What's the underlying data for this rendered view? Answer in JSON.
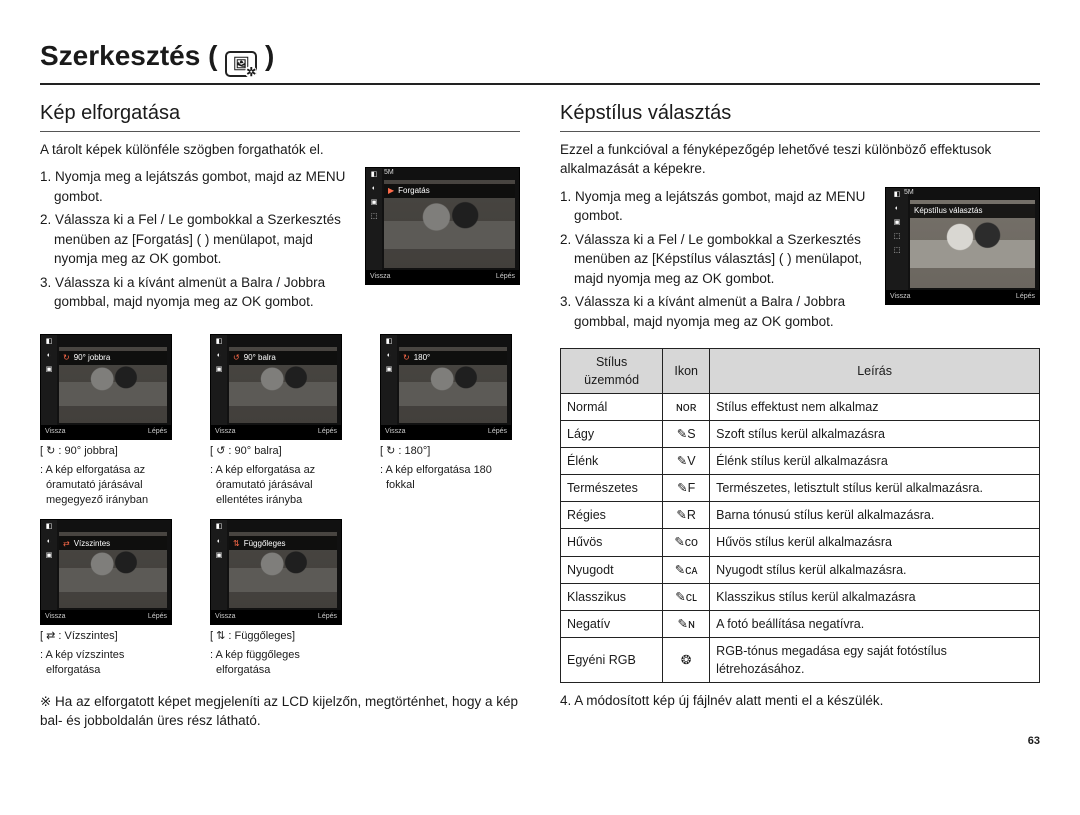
{
  "page_number": "63",
  "main_title": "Szerkesztés (",
  "main_title_close": ")",
  "left": {
    "section_title": "Kép elforgatása",
    "intro": "A tárolt képek különféle szögben forgathatók el.",
    "steps": [
      "1. Nyomja meg a lejátszás gombot, majd az MENU gombot.",
      "2. Válassza ki a Fel / Le gombokkal a Szerkesztés menüben az [Forgatás] (      ) menülapot, majd nyomja meg az OK gombot.",
      "3. Válassza ki a kívánt almenüt a Balra / Jobbra gombbal, majd nyomja meg az OK gombot."
    ],
    "big_preview": {
      "band_icon": "▶",
      "band_label": "Forgatás",
      "bottom_left": "Vissza",
      "bottom_right": "Lépés",
      "top_size": "5M"
    },
    "thumbs_row1": [
      {
        "band_icon": "↻",
        "band_label": "90° jobbra",
        "bottom_left": "Vissza",
        "bottom_right": "Lépés",
        "caption_head": "[ ↻ : 90° jobbra]",
        "caption_body": ": A kép elforgatása az óramutató járásával megegyező irányban"
      },
      {
        "band_icon": "↺",
        "band_label": "90° balra",
        "bottom_left": "Vissza",
        "bottom_right": "Lépés",
        "caption_head": "[ ↺ : 90° balra]",
        "caption_body": ": A kép elforgatása az óramutató járásával ellentétes irányba"
      },
      {
        "band_icon": "↻",
        "band_label": "180°",
        "bottom_left": "Vissza",
        "bottom_right": "Lépés",
        "caption_head": "[ ↻ : 180°]",
        "caption_body": ": A kép elforgatása 180 fokkal"
      }
    ],
    "thumbs_row2": [
      {
        "band_icon": "⇄",
        "band_label": "Vízszintes",
        "bottom_left": "Vissza",
        "bottom_right": "Lépés",
        "caption_head": "[ ⇄ : Vízszintes]",
        "caption_body": ": A kép vízszintes elforgatása"
      },
      {
        "band_icon": "⇅",
        "band_label": "Függőleges",
        "bottom_left": "Vissza",
        "bottom_right": "Lépés",
        "caption_head": "[ ⇅ : Függőleges]",
        "caption_body": ": A kép függőleges elforgatása"
      }
    ],
    "note": "※ Ha az elforgatott képet megjeleníti az LCD kijelzőn, megtörténhet, hogy a kép bal- és jobboldalán üres rész látható."
  },
  "right": {
    "section_title": "Képstílus választás",
    "intro": "Ezzel a funkcióval a fényképezőgép lehetővé teszi különböző effektusok alkalmazását a képekre.",
    "steps_before_preview": [
      "1. Nyomja meg a lejátszás gombot, majd az MENU gombot.",
      "2. Válassza ki a Fel / Le gombokkal a Szerkesztés menüben az [Képstílus választás] (        ) menülapot, majd nyomja meg az OK gombot.",
      "3. Válassza ki a kívánt almenüt a Balra / Jobbra gombbal, majd nyomja meg az OK gombot."
    ],
    "big_preview": {
      "band_label": "Képstílus választás",
      "bottom_left": "Vissza",
      "bottom_right": "Lépés",
      "top_size": "5M"
    },
    "table": {
      "headers": [
        "Stílus üzemmód",
        "Ikon",
        "Leírás"
      ],
      "rows": [
        {
          "mode": "Normál",
          "icon": "ɴᴏʀ",
          "desc": "Stílus effektust nem alkalmaz"
        },
        {
          "mode": "Lágy",
          "icon": "✎S",
          "desc": "Szoft stílus kerül alkalmazásra"
        },
        {
          "mode": "Élénk",
          "icon": "✎V",
          "desc": "Élénk stílus kerül alkalmazásra"
        },
        {
          "mode": "Természetes",
          "icon": "✎F",
          "desc": "Természetes, letisztult stílus kerül alkalmazásra."
        },
        {
          "mode": "Régies",
          "icon": "✎R",
          "desc": "Barna tónusú stílus kerül alkalmazásra."
        },
        {
          "mode": "Hűvös",
          "icon": "✎ᴄᴏ",
          "desc": "Hűvös stílus kerül alkalmazásra"
        },
        {
          "mode": "Nyugodt",
          "icon": "✎ᴄᴀ",
          "desc": "Nyugodt stílus kerül alkalmazásra."
        },
        {
          "mode": "Klasszikus",
          "icon": "✎ᴄʟ",
          "desc": "Klasszikus stílus kerül alkalmazásra"
        },
        {
          "mode": "Negatív",
          "icon": "✎ɴ",
          "desc": "A fotó beállítása negatívra."
        },
        {
          "mode": "Egyéni RGB",
          "icon": "❂",
          "desc": "RGB-tónus megadása egy saját fotóstílus létrehozásához."
        }
      ]
    },
    "after_table": "4. A módosított kép új fájlnév alatt menti el a készülék."
  }
}
